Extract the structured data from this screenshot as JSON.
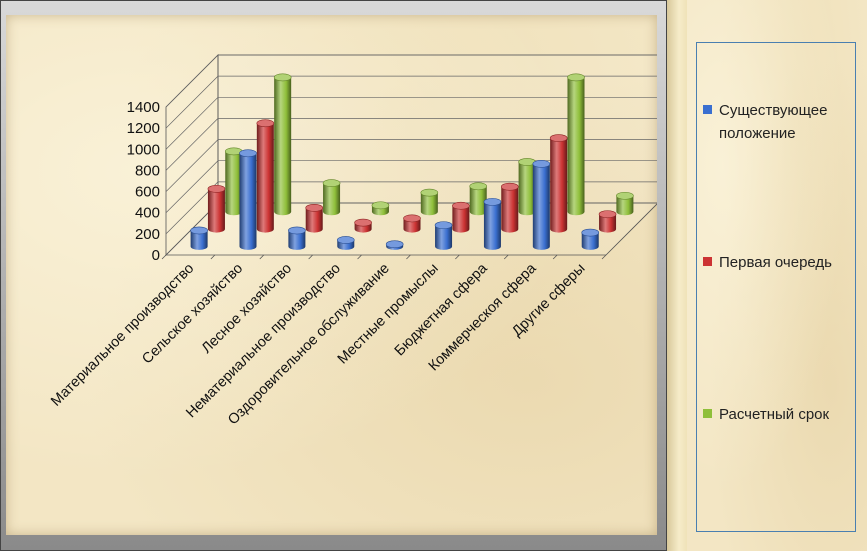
{
  "chart_data": {
    "type": "bar",
    "variant": "3d-clustered",
    "title": "",
    "xlabel": "",
    "ylabel": "",
    "ylim": [
      0,
      1400
    ],
    "yticks": [
      0,
      200,
      400,
      600,
      800,
      1000,
      1200,
      1400
    ],
    "categories": [
      "Материальное производство",
      "Сельское хозяйство",
      "Лесное хозяйство",
      "Нематериальное производство",
      "Оздоровительное обслуживание",
      "Местные промыслы",
      "Бюджетная сфера",
      "Коммерческоя сфера",
      "Другие сферы"
    ],
    "series": [
      {
        "name": "Существующее положение",
        "color": "#3a6fd0",
        "values": [
          150,
          880,
          150,
          60,
          20,
          200,
          420,
          780,
          130
        ]
      },
      {
        "name": "Первая очередь",
        "color": "#cc3333",
        "values": [
          380,
          1000,
          200,
          60,
          100,
          220,
          400,
          860,
          140
        ]
      },
      {
        "name": "Расчетный срок",
        "color": "#8fbf3a",
        "values": [
          570,
          1270,
          270,
          60,
          180,
          240,
          470,
          1270,
          150
        ]
      }
    ],
    "grid": true,
    "legend_position": "right"
  }
}
